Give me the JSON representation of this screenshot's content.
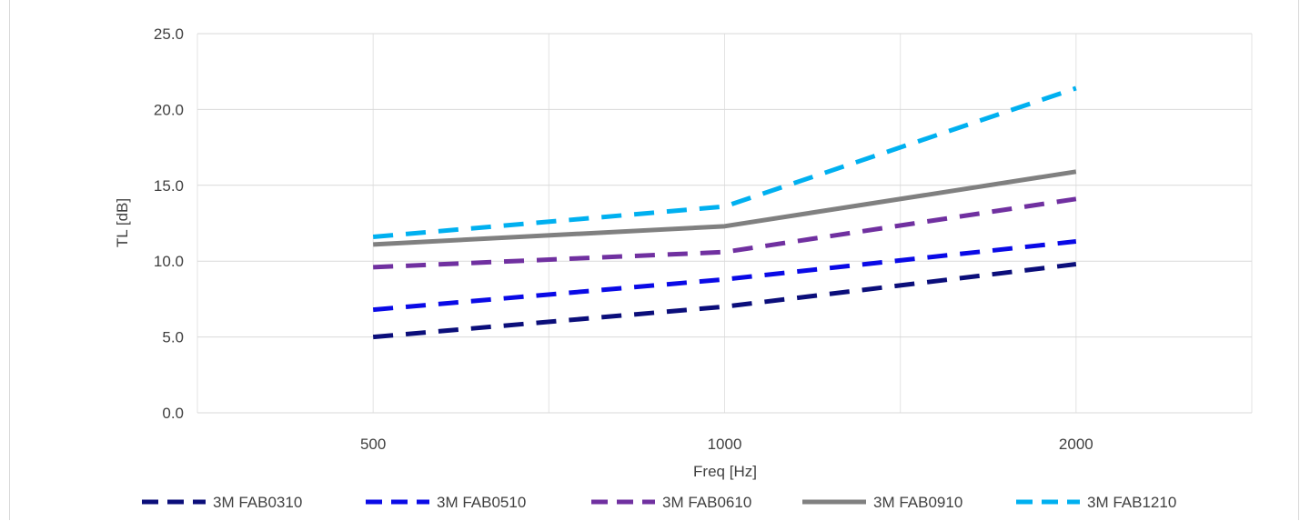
{
  "chart_data": {
    "type": "line",
    "title": "",
    "xlabel": "Freq [Hz]",
    "ylabel": "TL [dB]",
    "x_scale": "log",
    "categories": [
      "500",
      "1000",
      "2000"
    ],
    "x": [
      500,
      1000,
      2000
    ],
    "ylim": [
      0,
      25
    ],
    "yticks": [
      "0.0",
      "5.0",
      "10.0",
      "15.0",
      "20.0",
      "25.0"
    ],
    "grid": true,
    "legend_position": "bottom",
    "series": [
      {
        "name": "3M FAB0310",
        "values": [
          5.0,
          7.0,
          9.8
        ],
        "color": "#0b0e7a",
        "dash": "dashed"
      },
      {
        "name": "3M FAB0510",
        "values": [
          6.8,
          8.8,
          11.3
        ],
        "color": "#0a0ae6",
        "dash": "dashed"
      },
      {
        "name": "3M FAB0610",
        "values": [
          9.6,
          10.6,
          14.1
        ],
        "color": "#7030a0",
        "dash": "dashed"
      },
      {
        "name": "3M FAB0910",
        "values": [
          11.1,
          12.3,
          15.9
        ],
        "color": "#808080",
        "dash": "solid"
      },
      {
        "name": "3M FAB1210",
        "values": [
          11.6,
          13.6,
          21.4
        ],
        "color": "#00b0f0",
        "dash": "dashed"
      }
    ]
  }
}
